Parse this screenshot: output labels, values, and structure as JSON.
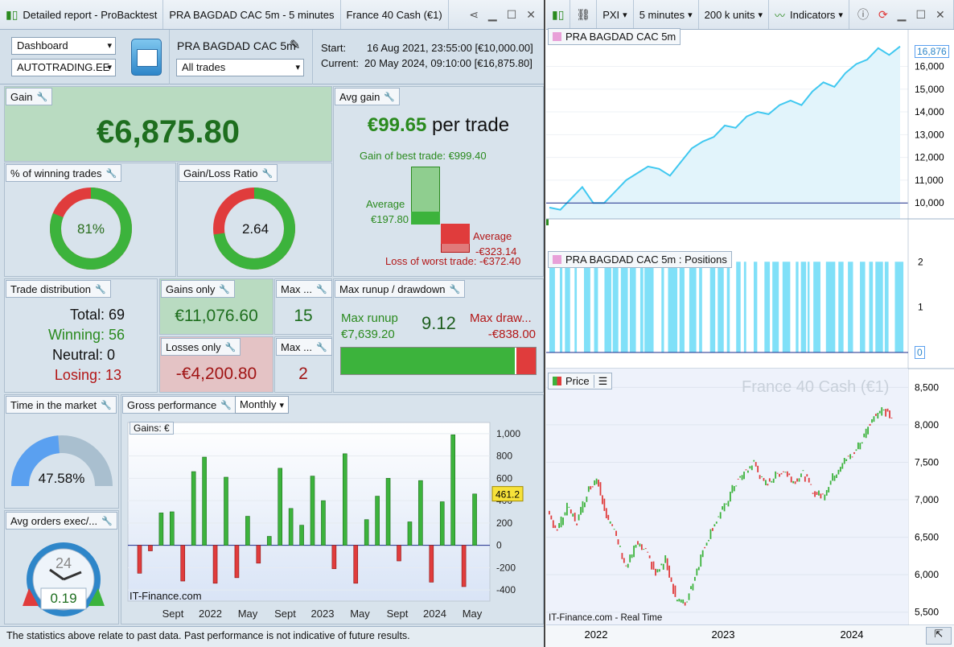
{
  "left_title": {
    "app": "Detailed report - ProBacktest",
    "strategy": "PRA BAGDAD CAC 5m - 5 minutes",
    "instrument": "France 40 Cash (€1)"
  },
  "header": {
    "view_select": "Dashboard",
    "system_select": "AUTOTRADING.EE",
    "strategy_name": "PRA BAGDAD CAC 5m",
    "trades_select": "All trades",
    "start_label": "Start:",
    "start_value": "16 Aug 2021, 23:55:00 [€10,000.00]",
    "current_label": "Current:",
    "current_value": "20 May 2024, 09:10:00 [€16,875.80]"
  },
  "gain": {
    "label": "Gain",
    "value": "€6,875.80"
  },
  "avg_gain": {
    "label": "Avg gain",
    "value": "€99.65",
    "suffix": "per trade",
    "best_label": "Gain of best trade: €999.40",
    "avg_win_label": "Average",
    "avg_win_value": "€197.80",
    "avg_loss_label": "Average",
    "avg_loss_value": "-€323.14",
    "worst_label": "Loss of worst trade: -€372.40"
  },
  "winning_pct": {
    "label": "% of winning trades",
    "value": "81%",
    "fraction": 0.81
  },
  "gain_loss": {
    "label": "Gain/Loss Ratio",
    "value": "2.64",
    "fraction": 0.725
  },
  "trade_dist": {
    "label": "Trade distribution",
    "total": "Total: 69",
    "winning": "Winning: 56",
    "neutral": "Neutral: 0",
    "losing": "Losing: 13"
  },
  "gains_only": {
    "label": "Gains only",
    "value": "€11,076.60"
  },
  "losses_only": {
    "label": "Losses only",
    "value": "-€4,200.80"
  },
  "max_wins": {
    "label": "Max ...",
    "value": "15"
  },
  "max_losses": {
    "label": "Max ...",
    "value": "2"
  },
  "runup": {
    "label": "Max runup / drawdown",
    "runup_label": "Max runup",
    "runup_value": "€7,639.20",
    "ratio": "9.12",
    "drawdown_label": "Max draw...",
    "drawdown_value": "-€838.00",
    "runup_fraction": 0.901
  },
  "time_market": {
    "label": "Time in the market",
    "value": "47.58%",
    "fraction": 0.4758
  },
  "avg_orders": {
    "label": "Avg orders exec/...",
    "clock_num": "24",
    "value": "0.19"
  },
  "gross": {
    "label": "Gross performance",
    "period_select": "Monthly",
    "tag": "Gains: €",
    "last_value": "461.2",
    "watermark": "IT-Finance.com"
  },
  "footer": {
    "text": "The statistics above relate to past data. Past performance is not indicative of future results."
  },
  "right_title": {
    "ticker": "PXI",
    "timeframe": "5 minutes",
    "units": "200 k units",
    "indicators": "Indicators"
  },
  "equity_pane": {
    "tag": "PRA BAGDAD CAC 5m",
    "last_value": "16,876"
  },
  "positions_pane": {
    "tag": "PRA BAGDAD CAC 5m : Positions",
    "last_value": "0"
  },
  "price_pane": {
    "tag": "Price",
    "watermark": "France 40 Cash (€1)",
    "source": "IT-Finance.com - Real Time"
  },
  "colors": {
    "win": "#3cb33c",
    "loss": "#e03c3c",
    "equity": "#40c8f0",
    "positions": "#80e0f8"
  },
  "chart_data": [
    {
      "type": "bar",
      "name": "gross-performance",
      "x_tick_labels": [
        "Sept",
        "2022",
        "May",
        "Sept",
        "2023",
        "May",
        "Sept",
        "2024",
        "May"
      ],
      "y_ticks": [
        "1,000",
        "800",
        "600",
        "400",
        "200",
        "0",
        "-200",
        "-400"
      ],
      "ylim": [
        -500,
        1100
      ],
      "values": [
        -250,
        -50,
        290,
        300,
        -320,
        660,
        790,
        -340,
        610,
        -290,
        260,
        -160,
        80,
        690,
        330,
        180,
        620,
        400,
        -210,
        820,
        -340,
        230,
        440,
        600,
        -140,
        210,
        580,
        -330,
        390,
        990,
        -370,
        460
      ]
    },
    {
      "type": "line",
      "name": "equity-curve",
      "y_ticks": [
        "16,000",
        "15,000",
        "14,000",
        "13,000",
        "12,000",
        "11,000",
        "10,000"
      ],
      "ylim": [
        9300,
        16900
      ],
      "x_tick_labels": [
        "2022",
        "2023",
        "2024"
      ],
      "values": [
        9800,
        9700,
        10200,
        10700,
        10000,
        10000,
        10500,
        11000,
        11300,
        11600,
        11500,
        11200,
        11800,
        12400,
        12700,
        12900,
        13400,
        13300,
        13800,
        14000,
        13900,
        14300,
        14500,
        14300,
        14900,
        15300,
        15100,
        15700,
        16100,
        16300,
        16800,
        16500,
        16876
      ]
    },
    {
      "type": "bar",
      "name": "positions",
      "y_ticks": [
        "2",
        "1",
        "0"
      ],
      "ylim": [
        0,
        2.2
      ]
    },
    {
      "type": "line",
      "name": "price",
      "y_ticks": [
        "8,500",
        "8,000",
        "7,500",
        "7,000",
        "6,500",
        "6,000",
        "5,500"
      ],
      "ylim": [
        5400,
        8600
      ],
      "x_tick_labels": [
        "2022",
        "2023",
        "2024"
      ],
      "values": [
        6800,
        6600,
        6900,
        6700,
        7100,
        7300,
        6800,
        6500,
        6100,
        6400,
        6300,
        6000,
        6200,
        5700,
        5600,
        6000,
        6400,
        6700,
        6900,
        7200,
        7350,
        7500,
        7200,
        7300,
        7400,
        7250,
        7350,
        7100,
        7050,
        7300,
        7500,
        7600,
        7800,
        8100,
        8200,
        8100
      ]
    }
  ]
}
